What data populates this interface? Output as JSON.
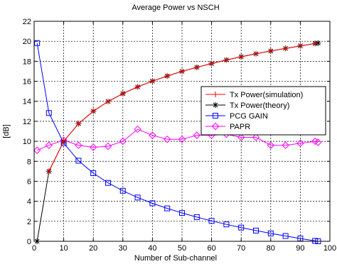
{
  "chart_data": {
    "type": "line",
    "title": "Average Power vs NSCH",
    "xlabel": "Number of Sub-channel",
    "ylabel": "[dB]",
    "xlim": [
      0,
      100
    ],
    "ylim": [
      0,
      22
    ],
    "xticks": [
      0,
      10,
      20,
      30,
      40,
      50,
      60,
      70,
      80,
      90,
      100
    ],
    "yticks": [
      0,
      2,
      4,
      6,
      8,
      10,
      12,
      14,
      16,
      18,
      20,
      22
    ],
    "grid": true,
    "legend_position": "right",
    "series": [
      {
        "name": "Tx Power(simulation)",
        "color": "#ff0000",
        "marker": "plus",
        "x": [
          5,
          10,
          15,
          20,
          25,
          30,
          35,
          40,
          45,
          50,
          55,
          60,
          65,
          70,
          75,
          80,
          85,
          90,
          95
        ],
        "values": [
          7.0,
          10.0,
          11.76,
          13.01,
          13.98,
          14.77,
          15.44,
          16.02,
          16.53,
          16.99,
          17.4,
          17.78,
          18.13,
          18.45,
          18.75,
          19.03,
          19.29,
          19.54,
          19.78
        ]
      },
      {
        "name": "Tx Power(theory)",
        "color": "#000000",
        "marker": "star",
        "x": [
          1,
          5,
          10,
          15,
          20,
          25,
          30,
          35,
          40,
          45,
          50,
          55,
          60,
          65,
          70,
          75,
          80,
          85,
          90,
          95,
          96
        ],
        "values": [
          0,
          6.99,
          10.0,
          11.76,
          13.01,
          13.98,
          14.77,
          15.44,
          16.02,
          16.53,
          16.99,
          17.4,
          17.78,
          18.13,
          18.45,
          18.75,
          19.03,
          19.29,
          19.54,
          19.78,
          19.82
        ]
      },
      {
        "name": "PCG GAIN",
        "color": "#0000ff",
        "marker": "square",
        "x": [
          1,
          5,
          10,
          15,
          20,
          25,
          30,
          35,
          40,
          45,
          50,
          55,
          60,
          65,
          70,
          75,
          80,
          85,
          90,
          95,
          96
        ],
        "values": [
          19.82,
          12.83,
          9.82,
          8.06,
          6.81,
          5.84,
          5.05,
          4.38,
          3.8,
          3.29,
          2.83,
          2.42,
          2.04,
          1.69,
          1.37,
          1.07,
          0.79,
          0.53,
          0.28,
          0.04,
          0.0
        ]
      },
      {
        "name": "PAPR",
        "color": "#ff00ff",
        "marker": "diamond",
        "x": [
          1,
          5,
          10,
          15,
          20,
          25,
          30,
          35,
          40,
          45,
          50,
          55,
          60,
          65,
          70,
          75,
          80,
          85,
          90,
          95,
          96
        ],
        "values": [
          9.1,
          9.6,
          10.1,
          9.6,
          9.4,
          9.5,
          10.0,
          11.2,
          10.6,
          10.2,
          10.2,
          10.6,
          10.6,
          10.7,
          10.4,
          10.4,
          9.6,
          9.6,
          9.8,
          10.0,
          9.9
        ]
      }
    ]
  }
}
